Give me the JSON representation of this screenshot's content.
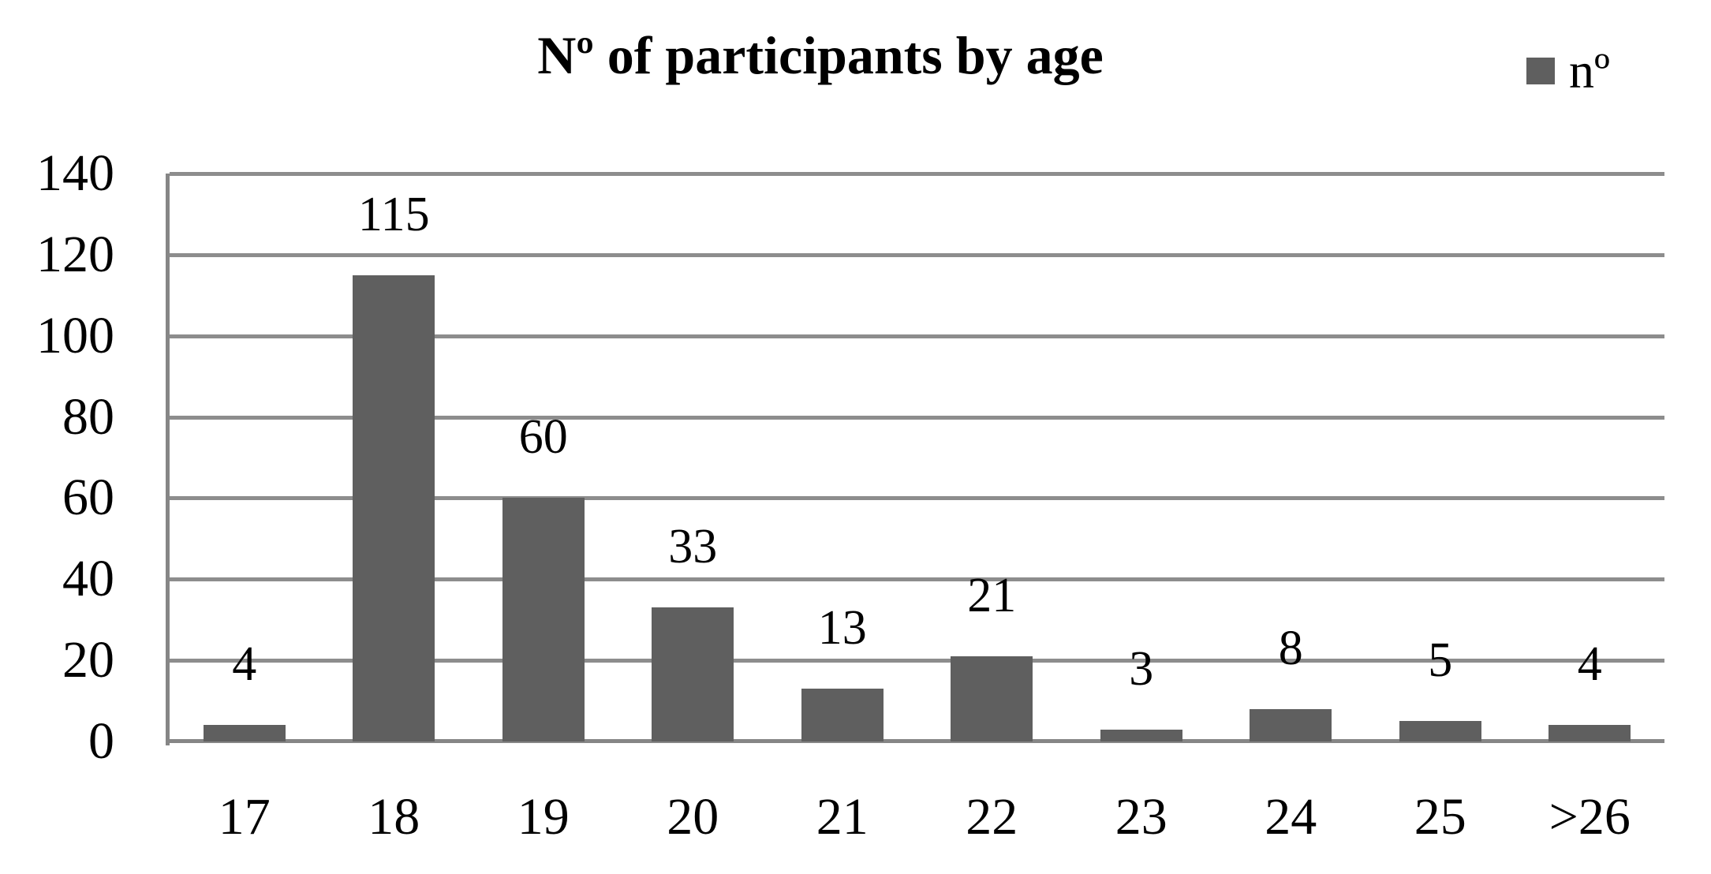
{
  "chart_data": {
    "type": "bar",
    "title": "Nº of participants by age",
    "legend": {
      "label": "nº",
      "position": "top-right"
    },
    "categories": [
      "17",
      "18",
      "19",
      "20",
      "21",
      "22",
      "23",
      "24",
      "25",
      ">26"
    ],
    "values": [
      4,
      115,
      60,
      33,
      13,
      21,
      3,
      8,
      5,
      4
    ],
    "series": [
      {
        "name": "nº",
        "values": [
          4,
          115,
          60,
          33,
          13,
          21,
          3,
          8,
          5,
          4
        ]
      }
    ],
    "data_labels_shown": true,
    "xlabel": "",
    "ylabel": "",
    "ylim": [
      0,
      140
    ],
    "yticks": [
      0,
      20,
      40,
      60,
      80,
      100,
      120,
      140
    ],
    "grid": "horizontal",
    "colors": {
      "bar": "#5F5F5F",
      "gridline": "#8D8D8D",
      "axis": "#868686",
      "text": "#000000",
      "background": "#FFFFFF"
    }
  }
}
